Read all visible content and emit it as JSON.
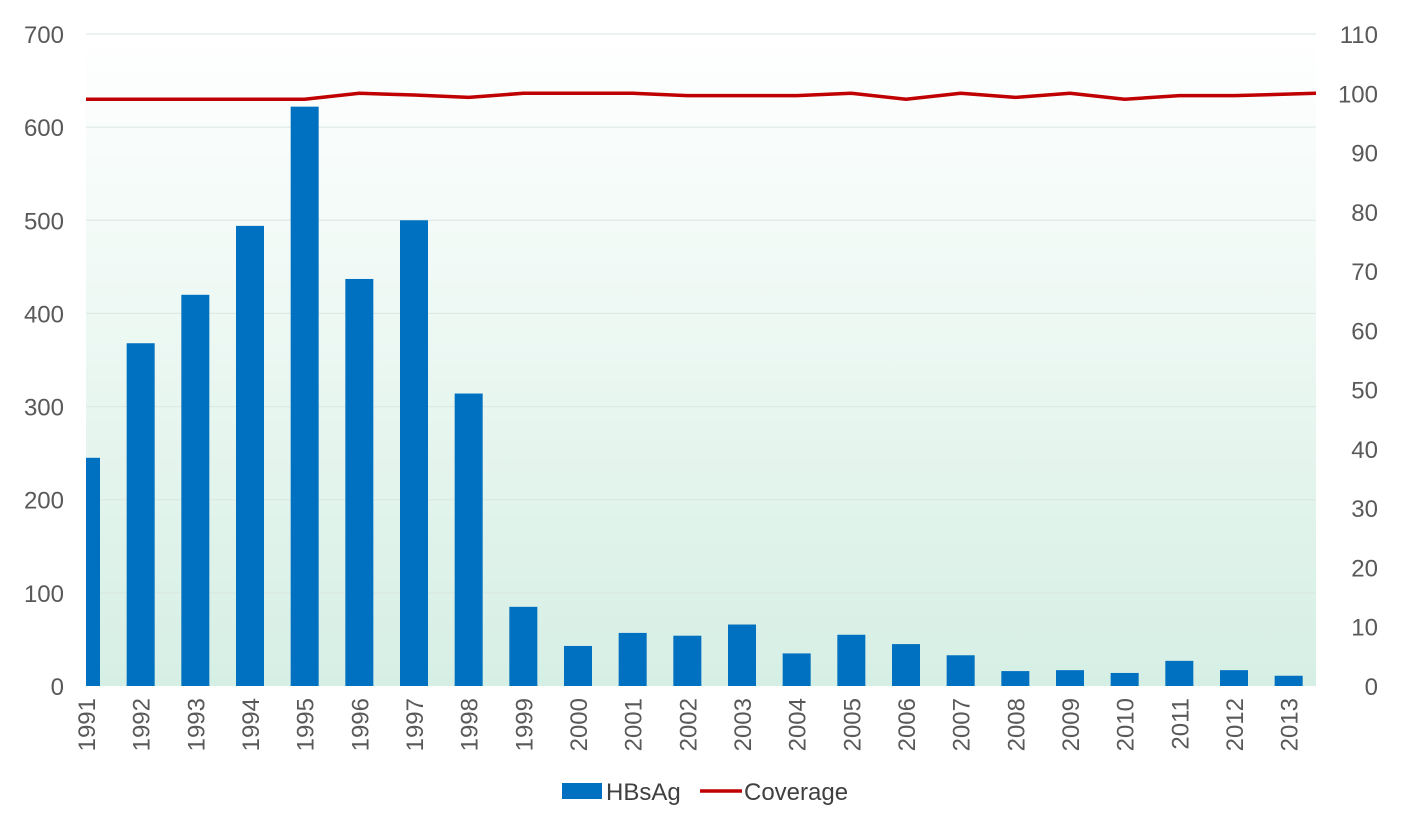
{
  "chart_data": {
    "type": "bar",
    "categories": [
      "1991",
      "1992",
      "1993",
      "1994",
      "1995",
      "1996",
      "1997",
      "1998",
      "1999",
      "2000",
      "2001",
      "2002",
      "2003",
      "2004",
      "2005",
      "2006",
      "2007",
      "2008",
      "2009",
      "2010",
      "2011",
      "2012",
      "2013"
    ],
    "series": [
      {
        "name": "HBsAg",
        "type": "bar",
        "axis": "left",
        "color": "#0070C0",
        "values": [
          245,
          368,
          420,
          494,
          622,
          437,
          500,
          314,
          85,
          43,
          57,
          54,
          66,
          35,
          55,
          45,
          33,
          16,
          17,
          14,
          27,
          17,
          11
        ]
      },
      {
        "name": "Coverage",
        "type": "line",
        "axis": "right",
        "color": "#C00000",
        "values": [
          99,
          99,
          99,
          99,
          99,
          100,
          99.7,
          99.3,
          100,
          100,
          100,
          99.6,
          99.6,
          99.6,
          100,
          99,
          100,
          99.3,
          100,
          99,
          99.6,
          99.6,
          100
        ]
      }
    ],
    "ylim_left": [
      0,
      700
    ],
    "yticks_left": [
      0,
      100,
      200,
      300,
      400,
      500,
      600,
      700
    ],
    "ylim_right": [
      0,
      110
    ],
    "yticks_right": [
      0,
      10,
      20,
      30,
      40,
      50,
      60,
      70,
      80,
      90,
      100,
      110
    ],
    "grid": true,
    "background": "gradient white-to-light-green",
    "legend": "bottom"
  }
}
